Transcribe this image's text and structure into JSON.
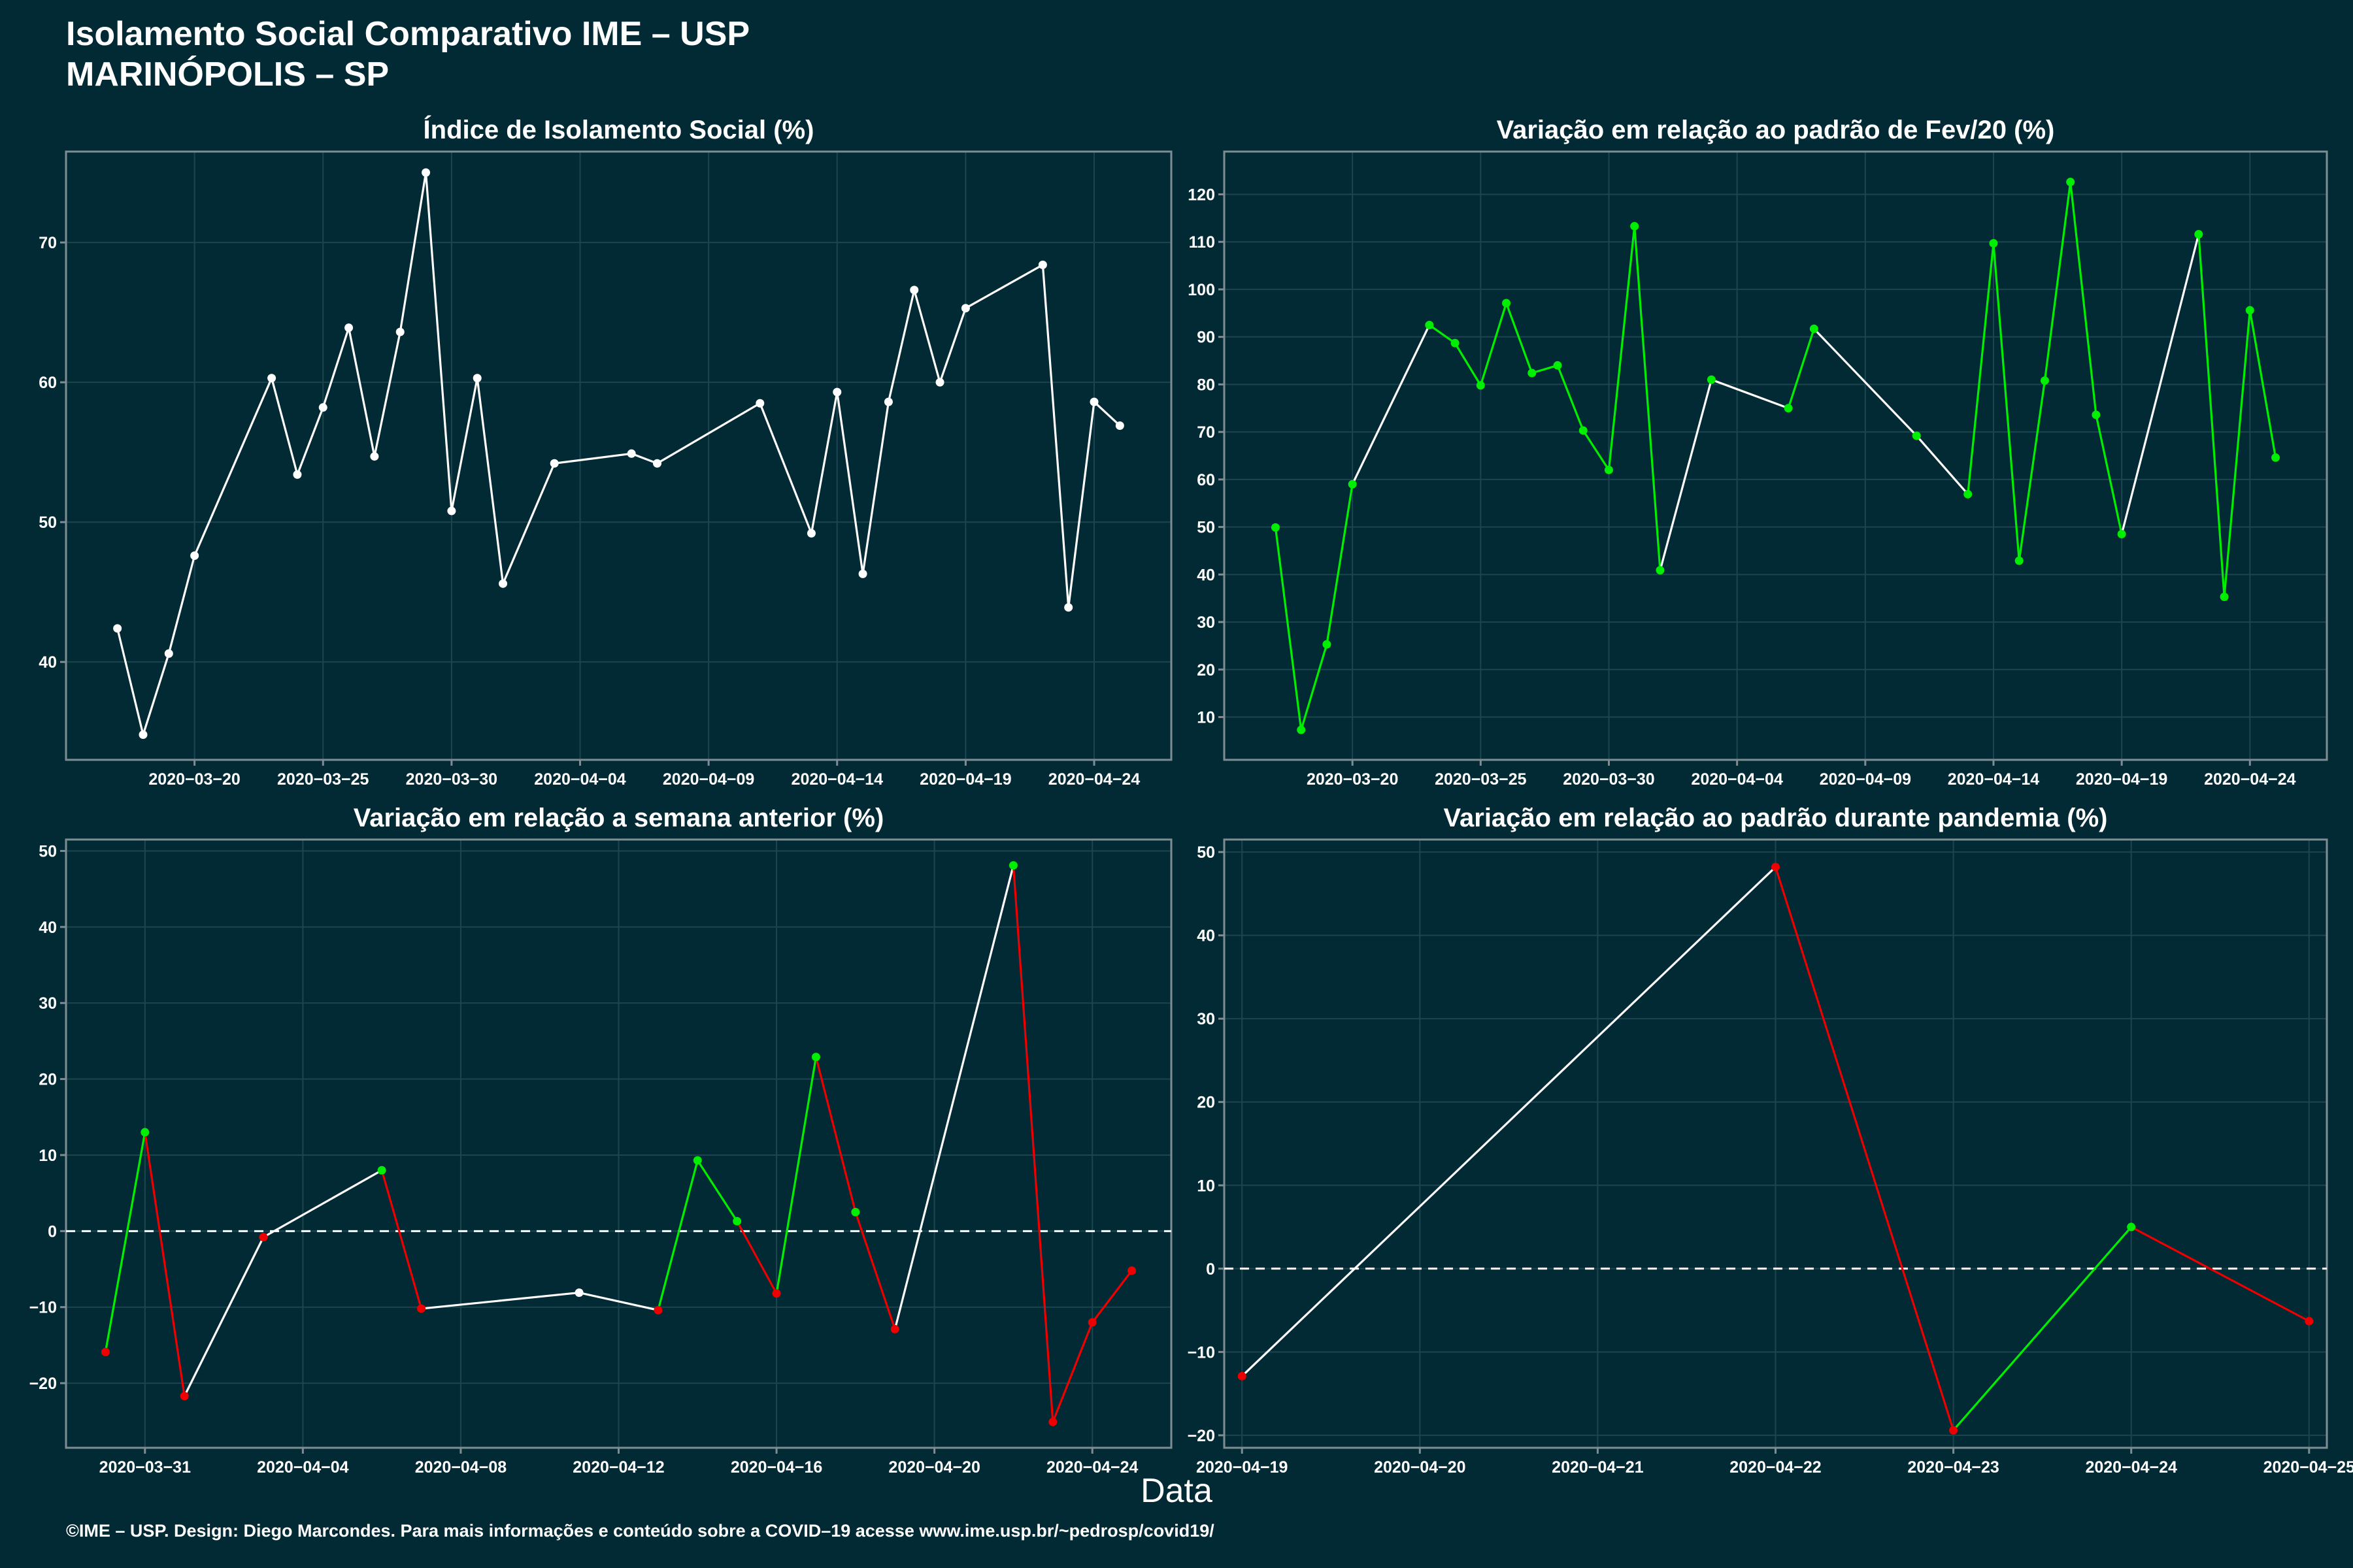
{
  "header": {
    "title": "Isolamento Social Comparativo IME – USP",
    "subtitle": "MARINÓPOLIS – SP"
  },
  "x_axis_label": "Data",
  "footer": "©IME – USP. Design: Diego Marcondes. Para mais informações e conteúdo sobre a COVID–19 acesse www.ime.usp.br/~pedrosp/covid19/",
  "colors": {
    "background": "#022a35",
    "neutral_line": "#ffffff",
    "increase": "#00ee00",
    "decrease": "#ee0000",
    "grid": "#1c4550",
    "axis": "#7f8d93"
  },
  "chart_data": [
    {
      "type": "line",
      "title": "Índice de Isolamento Social (%)",
      "xlabel": "Data",
      "ylabel": "",
      "x": [
        "2020-03-17",
        "2020-03-18",
        "2020-03-19",
        "2020-03-20",
        "2020-03-23",
        "2020-03-24",
        "2020-03-25",
        "2020-03-26",
        "2020-03-27",
        "2020-03-28",
        "2020-03-29",
        "2020-03-30",
        "2020-03-31",
        "2020-04-01",
        "2020-04-03",
        "2020-04-06",
        "2020-04-07",
        "2020-04-11",
        "2020-04-13",
        "2020-04-14",
        "2020-04-15",
        "2020-04-16",
        "2020-04-17",
        "2020-04-18",
        "2020-04-19",
        "2020-04-22",
        "2020-04-23",
        "2020-04-24",
        "2020-04-25"
      ],
      "values": [
        42.4,
        34.8,
        40.6,
        47.6,
        60.3,
        53.4,
        58.2,
        63.9,
        54.7,
        63.6,
        75.0,
        50.8,
        60.3,
        45.6,
        54.2,
        54.9,
        54.2,
        58.5,
        49.2,
        59.3,
        46.3,
        58.6,
        66.6,
        60.0,
        65.3,
        68.4,
        43.9,
        58.6,
        56.9
      ],
      "point_colors": [
        "neutral",
        "neutral",
        "neutral",
        "neutral",
        "neutral",
        "neutral",
        "neutral",
        "neutral",
        "neutral",
        "neutral",
        "neutral",
        "neutral",
        "neutral",
        "neutral",
        "neutral",
        "neutral",
        "neutral",
        "neutral",
        "neutral",
        "neutral",
        "neutral",
        "neutral",
        "neutral",
        "neutral",
        "neutral",
        "neutral",
        "neutral",
        "neutral",
        "neutral"
      ],
      "xlim": [
        "2020-03-15",
        "2020-04-27"
      ],
      "ylim": [
        33.0,
        76.5
      ],
      "xticks": [
        "2020-03-20",
        "2020-03-25",
        "2020-03-30",
        "2020-04-04",
        "2020-04-09",
        "2020-04-14",
        "2020-04-19",
        "2020-04-24"
      ],
      "yticks": [
        40,
        50,
        60,
        70
      ],
      "zero_line": false,
      "grid": true
    },
    {
      "type": "line",
      "title": "Variação em relação ao padrão de Fev/20 (%)",
      "xlabel": "Data",
      "ylabel": "",
      "x": [
        "2020-03-17",
        "2020-03-18",
        "2020-03-19",
        "2020-03-20",
        "2020-03-23",
        "2020-03-24",
        "2020-03-25",
        "2020-03-26",
        "2020-03-27",
        "2020-03-28",
        "2020-03-29",
        "2020-03-30",
        "2020-03-31",
        "2020-04-01",
        "2020-04-03",
        "2020-04-06",
        "2020-04-07",
        "2020-04-11",
        "2020-04-13",
        "2020-04-14",
        "2020-04-15",
        "2020-04-16",
        "2020-04-17",
        "2020-04-18",
        "2020-04-19",
        "2020-04-22",
        "2020-04-23",
        "2020-04-24",
        "2020-04-25"
      ],
      "values": [
        49.9,
        7.3,
        25.3,
        59.0,
        92.5,
        88.7,
        79.8,
        97.1,
        82.4,
        84.0,
        70.3,
        62.0,
        113.3,
        40.9,
        81.0,
        75.0,
        91.7,
        69.2,
        56.9,
        109.7,
        42.9,
        80.8,
        122.6,
        73.6,
        48.5,
        111.6,
        35.3,
        95.6,
        64.6
      ],
      "point_colors": [
        "increase",
        "increase",
        "increase",
        "increase",
        "increase",
        "increase",
        "increase",
        "increase",
        "increase",
        "increase",
        "increase",
        "increase",
        "increase",
        "increase",
        "increase",
        "increase",
        "increase",
        "increase",
        "increase",
        "increase",
        "increase",
        "increase",
        "increase",
        "increase",
        "increase",
        "increase",
        "increase",
        "increase",
        "increase"
      ],
      "segment_colors": [
        "increase",
        "increase",
        "increase",
        "neutral",
        "increase",
        "increase",
        "increase",
        "increase",
        "increase",
        "increase",
        "increase",
        "increase",
        "increase",
        "neutral",
        "neutral",
        "increase",
        "neutral",
        "neutral",
        "increase",
        "increase",
        "increase",
        "increase",
        "increase",
        "increase",
        "neutral",
        "increase",
        "increase",
        "increase"
      ],
      "xlim": [
        "2020-03-15",
        "2020-04-27"
      ],
      "ylim": [
        1.0,
        129.0
      ],
      "xticks": [
        "2020-03-20",
        "2020-03-25",
        "2020-03-30",
        "2020-04-04",
        "2020-04-09",
        "2020-04-14",
        "2020-04-19",
        "2020-04-24"
      ],
      "yticks": [
        10,
        20,
        30,
        40,
        50,
        60,
        70,
        80,
        90,
        100,
        110,
        120
      ],
      "zero_line": false,
      "grid": true
    },
    {
      "type": "line",
      "title": "Variação em relação a semana anterior (%)",
      "xlabel": "Data",
      "ylabel": "",
      "x": [
        "2020-03-30",
        "2020-03-31",
        "2020-04-01",
        "2020-04-03",
        "2020-04-06",
        "2020-04-07",
        "2020-04-11",
        "2020-04-13",
        "2020-04-14",
        "2020-04-15",
        "2020-04-16",
        "2020-04-17",
        "2020-04-18",
        "2020-04-19",
        "2020-04-22",
        "2020-04-23",
        "2020-04-24",
        "2020-04-25"
      ],
      "values": [
        -15.9,
        13.0,
        -21.7,
        -0.8,
        8.0,
        -10.2,
        -8.1,
        -10.4,
        9.3,
        1.3,
        -8.2,
        22.9,
        2.5,
        -12.9,
        48.1,
        -25.1,
        -12.0,
        -5.2
      ],
      "point_colors": [
        "decrease",
        "increase",
        "decrease",
        "decrease",
        "increase",
        "decrease",
        "neutral",
        "decrease",
        "increase",
        "increase",
        "decrease",
        "increase",
        "increase",
        "decrease",
        "increase",
        "decrease",
        "decrease",
        "decrease"
      ],
      "segment_colors": [
        "increase",
        "decrease",
        "neutral",
        "neutral",
        "decrease",
        "neutral",
        "neutral",
        "increase",
        "increase",
        "decrease",
        "increase",
        "decrease",
        "decrease",
        "neutral",
        "decrease",
        "decrease",
        "decrease"
      ],
      "xlim": [
        "2020-03-29",
        "2020-04-26"
      ],
      "ylim": [
        -28.5,
        51.5
      ],
      "xticks": [
        "2020-03-31",
        "2020-04-04",
        "2020-04-08",
        "2020-04-12",
        "2020-04-16",
        "2020-04-20",
        "2020-04-24"
      ],
      "yticks": [
        -20,
        -10,
        0,
        10,
        20,
        30,
        40,
        50
      ],
      "zero_line": true,
      "grid": true
    },
    {
      "type": "line",
      "title": "Variação em relação ao padrão durante pandemia (%)",
      "xlabel": "Data",
      "ylabel": "",
      "x": [
        "2020-04-19",
        "2020-04-22",
        "2020-04-23",
        "2020-04-24",
        "2020-04-25"
      ],
      "values": [
        -12.9,
        48.2,
        -19.4,
        5.0,
        -6.3
      ],
      "point_colors": [
        "decrease",
        "decrease",
        "decrease",
        "increase",
        "decrease"
      ],
      "segment_colors": [
        "neutral",
        "decrease",
        "increase",
        "decrease"
      ],
      "xlim": [
        "2020-04-18.9",
        "2020-04-25.1"
      ],
      "ylim": [
        -21.5,
        51.5
      ],
      "xticks": [
        "2020-04-19",
        "2020-04-20",
        "2020-04-21",
        "2020-04-22",
        "2020-04-23",
        "2020-04-24",
        "2020-04-25"
      ],
      "yticks": [
        -20,
        -10,
        0,
        10,
        20,
        30,
        40,
        50
      ],
      "zero_line": true,
      "grid": true
    }
  ]
}
